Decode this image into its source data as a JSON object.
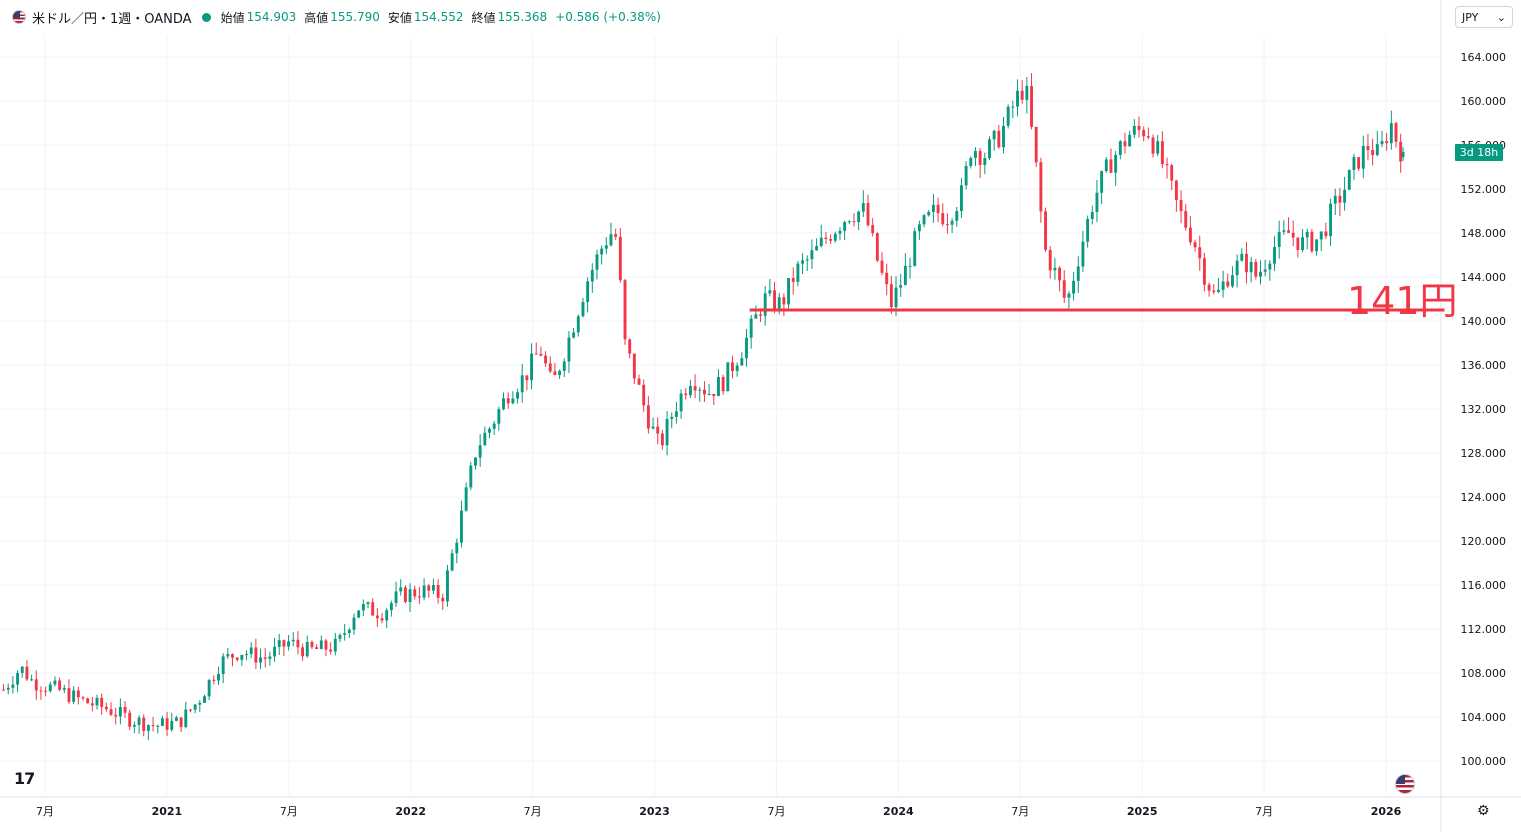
{
  "header": {
    "symbol": "米ドル／円・1週・OANDA",
    "open_label": "始値",
    "open": "154.903",
    "high_label": "高値",
    "high": "155.790",
    "low_label": "安値",
    "low": "154.552",
    "close_label": "終値",
    "close": "155.368",
    "change": "+0.586 (+0.38%)"
  },
  "currency_button": {
    "label": "JPY",
    "icon": "chevron-down-icon"
  },
  "countdown": "3d 18h",
  "annotation_label": "141円",
  "colors": {
    "up": "#089981",
    "down": "#f23645",
    "line": "#f23645",
    "grid": "#f0f3fa",
    "text": "#131722"
  },
  "chart_data": {
    "type": "candlestick",
    "title": "米ドル／円・1週・OANDA",
    "ylim": [
      98,
      166
    ],
    "y_ticks": [
      "164.000",
      "160.000",
      "156.000",
      "152.000",
      "148.000",
      "144.000",
      "140.000",
      "136.000",
      "132.000",
      "128.000",
      "124.000",
      "120.000",
      "116.000",
      "112.000",
      "108.000",
      "104.000",
      "100.000"
    ],
    "x_ticks": [
      {
        "label": "7月",
        "t": 2020.5
      },
      {
        "label": "2021",
        "t": 2021.0
      },
      {
        "label": "7月",
        "t": 2021.5
      },
      {
        "label": "2022",
        "t": 2022.0
      },
      {
        "label": "7月",
        "t": 2022.5
      },
      {
        "label": "2023",
        "t": 2023.0
      },
      {
        "label": "7月",
        "t": 2023.5
      },
      {
        "label": "2024",
        "t": 2024.0
      },
      {
        "label": "7月",
        "t": 2024.5
      },
      {
        "label": "2025",
        "t": 2025.0
      },
      {
        "label": "7月",
        "t": 2025.5
      },
      {
        "label": "2026",
        "t": 2026.0
      }
    ],
    "x_range": [
      2020.33,
      2026.24
    ],
    "horizontal_line": {
      "value": 141,
      "t_start": 2023.39,
      "t_end": 2026.24
    },
    "close_path": [
      [
        2020.33,
        106.5
      ],
      [
        2020.4,
        108.5
      ],
      [
        2020.45,
        107.2
      ],
      [
        2020.55,
        106.5
      ],
      [
        2020.65,
        105.5
      ],
      [
        2020.75,
        104.8
      ],
      [
        2020.85,
        103.8
      ],
      [
        2020.95,
        103.2
      ],
      [
        2021.05,
        103.5
      ],
      [
        2021.13,
        105.5
      ],
      [
        2021.22,
        109.0
      ],
      [
        2021.3,
        110.0
      ],
      [
        2021.4,
        109.3
      ],
      [
        2021.5,
        110.8
      ],
      [
        2021.58,
        110.0
      ],
      [
        2021.7,
        110.5
      ],
      [
        2021.78,
        114.0
      ],
      [
        2021.88,
        113.5
      ],
      [
        2021.95,
        115.0
      ],
      [
        2022.05,
        115.5
      ],
      [
        2022.13,
        115.0
      ],
      [
        2022.2,
        121.5
      ],
      [
        2022.27,
        128.5
      ],
      [
        2022.33,
        130.5
      ],
      [
        2022.4,
        133.5
      ],
      [
        2022.47,
        135.0
      ],
      [
        2022.53,
        137.5
      ],
      [
        2022.58,
        134.0
      ],
      [
        2022.65,
        138.5
      ],
      [
        2022.72,
        143.5
      ],
      [
        2022.79,
        147.0
      ],
      [
        2022.82,
        148.0
      ],
      [
        2022.85,
        147.5
      ],
      [
        2022.87,
        138.5
      ],
      [
        2022.92,
        135.0
      ],
      [
        2022.96,
        132.0
      ],
      [
        2023.02,
        128.5
      ],
      [
        2023.08,
        132.0
      ],
      [
        2023.15,
        135.0
      ],
      [
        2023.22,
        133.5
      ],
      [
        2023.28,
        134.5
      ],
      [
        2023.36,
        137.5
      ],
      [
        2023.45,
        142.0
      ],
      [
        2023.52,
        141.5
      ],
      [
        2023.58,
        144.5
      ],
      [
        2023.65,
        146.0
      ],
      [
        2023.72,
        148.0
      ],
      [
        2023.8,
        149.8
      ],
      [
        2023.86,
        150.0
      ],
      [
        2023.92,
        145.0
      ],
      [
        2023.97,
        141.5
      ],
      [
        2024.02,
        144.0
      ],
      [
        2024.08,
        148.0
      ],
      [
        2024.15,
        150.0
      ],
      [
        2024.2,
        149.5
      ],
      [
        2024.26,
        151.5
      ],
      [
        2024.3,
        156.0
      ],
      [
        2024.35,
        155.0
      ],
      [
        2024.42,
        157.0
      ],
      [
        2024.48,
        160.0
      ],
      [
        2024.52,
        161.5
      ],
      [
        2024.56,
        155.0
      ],
      [
        2024.6,
        146.5
      ],
      [
        2024.65,
        144.0
      ],
      [
        2024.69,
        141.5
      ],
      [
        2024.74,
        146.0
      ],
      [
        2024.8,
        151.0
      ],
      [
        2024.87,
        154.5
      ],
      [
        2024.95,
        157.0
      ],
      [
        2025.02,
        157.5
      ],
      [
        2025.08,
        154.5
      ],
      [
        2025.15,
        150.0
      ],
      [
        2025.21,
        147.5
      ],
      [
        2025.26,
        144.0
      ],
      [
        2025.3,
        142.0
      ],
      [
        2025.36,
        144.5
      ],
      [
        2025.42,
        145.5
      ],
      [
        2025.47,
        144.0
      ],
      [
        2025.53,
        146.5
      ],
      [
        2025.6,
        148.0
      ],
      [
        2025.66,
        147.0
      ],
      [
        2025.73,
        147.5
      ],
      [
        2025.78,
        150.0
      ],
      [
        2025.84,
        152.5
      ],
      [
        2025.88,
        154.5
      ],
      [
        2025.93,
        156.0
      ],
      [
        2025.97,
        155.0
      ],
      [
        2026.02,
        158.0
      ],
      [
        2026.05,
        156.0
      ],
      [
        2026.07,
        155.2
      ]
    ],
    "last_candle": {
      "open": 154.903,
      "high": 155.79,
      "low": 154.552,
      "close": 155.368
    }
  }
}
